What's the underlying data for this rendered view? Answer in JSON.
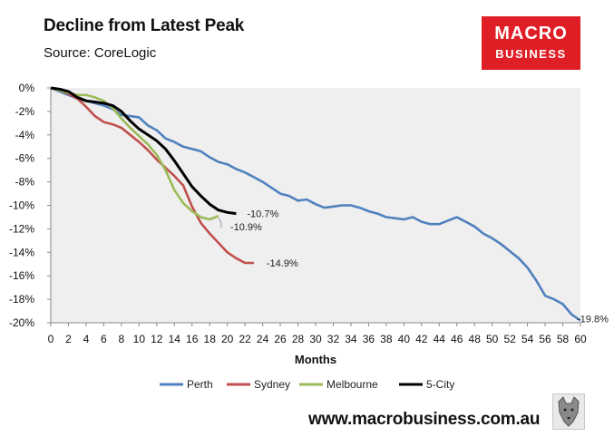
{
  "title": "Decline from Latest Peak",
  "source": "Source: CoreLogic",
  "logo": {
    "line1": "MACRO",
    "line2": "BUSINESS"
  },
  "footer_url": "www.macrobusiness.com.au",
  "colors": {
    "perth": "#4f81bd",
    "sydney": "#c0504d",
    "melbourne": "#9bbb59",
    "five_city": "#000000",
    "plot_bg": "#efefef",
    "logo_bg": "#e01e26"
  },
  "chart_data": {
    "type": "line",
    "title": "Decline from Latest Peak",
    "xlabel": "Months",
    "ylabel": "",
    "xlim": [
      0,
      60
    ],
    "ylim": [
      -20,
      0
    ],
    "xticks": [
      0,
      2,
      4,
      6,
      8,
      10,
      12,
      14,
      16,
      18,
      20,
      22,
      24,
      26,
      28,
      30,
      32,
      34,
      36,
      38,
      40,
      42,
      44,
      46,
      48,
      50,
      52,
      54,
      56,
      58,
      60
    ],
    "yticks": [
      0,
      -2,
      -4,
      -6,
      -8,
      -10,
      -12,
      -14,
      -16,
      -18,
      -20
    ],
    "ytick_labels": [
      "0%",
      "-2%",
      "-4%",
      "-6%",
      "-8%",
      "-10%",
      "-12%",
      "-14%",
      "-16%",
      "-18%",
      "-20%"
    ],
    "legend_position": "bottom",
    "series": [
      {
        "name": "Perth",
        "color": "#4f81bd",
        "x": [
          0,
          1,
          2,
          3,
          4,
          5,
          6,
          7,
          8,
          9,
          10,
          11,
          12,
          13,
          14,
          15,
          16,
          17,
          18,
          19,
          20,
          21,
          22,
          23,
          24,
          25,
          26,
          27,
          28,
          29,
          30,
          31,
          32,
          33,
          34,
          35,
          36,
          37,
          38,
          39,
          40,
          41,
          42,
          43,
          44,
          45,
          46,
          47,
          48,
          49,
          50,
          51,
          52,
          53,
          54,
          55,
          56,
          57,
          58,
          59,
          60
        ],
        "values": [
          0,
          -0.3,
          -0.6,
          -0.9,
          -1.1,
          -1.3,
          -1.5,
          -1.8,
          -2.3,
          -2.4,
          -2.5,
          -3.2,
          -3.6,
          -4.3,
          -4.6,
          -5.0,
          -5.2,
          -5.4,
          -5.9,
          -6.3,
          -6.5,
          -6.9,
          -7.2,
          -7.6,
          -8.0,
          -8.5,
          -9.0,
          -9.2,
          -9.6,
          -9.5,
          -9.9,
          -10.2,
          -10.1,
          -10.0,
          -10.0,
          -10.2,
          -10.5,
          -10.7,
          -11.0,
          -11.1,
          -11.2,
          -11.0,
          -11.4,
          -11.6,
          -11.6,
          -11.3,
          -11.0,
          -11.4,
          -11.8,
          -12.4,
          -12.8,
          -13.3,
          -13.9,
          -14.5,
          -15.3,
          -16.4,
          -17.7,
          -18.0,
          -18.4,
          -19.3,
          -19.8
        ]
      },
      {
        "name": "Sydney",
        "color": "#c0504d",
        "x": [
          0,
          1,
          2,
          3,
          4,
          5,
          6,
          7,
          8,
          9,
          10,
          11,
          12,
          13,
          14,
          15,
          16,
          17,
          18,
          19,
          20,
          21,
          22,
          23
        ],
        "values": [
          0,
          -0.2,
          -0.5,
          -0.9,
          -1.6,
          -2.4,
          -2.9,
          -3.1,
          -3.4,
          -4.0,
          -4.6,
          -5.3,
          -6.1,
          -6.8,
          -7.5,
          -8.3,
          -10.1,
          -11.5,
          -12.4,
          -13.2,
          -14.0,
          -14.5,
          -14.9,
          -14.9
        ]
      },
      {
        "name": "Melbourne",
        "color": "#9bbb59",
        "x": [
          0,
          1,
          2,
          3,
          4,
          5,
          6,
          7,
          8,
          9,
          10,
          11,
          12,
          13,
          14,
          15,
          16,
          17,
          18,
          19
        ],
        "values": [
          0,
          -0.2,
          -0.4,
          -0.6,
          -0.6,
          -0.8,
          -1.1,
          -1.7,
          -2.6,
          -3.4,
          -4.1,
          -4.8,
          -5.7,
          -7.0,
          -8.7,
          -9.8,
          -10.5,
          -11.0,
          -11.2,
          -10.9
        ]
      },
      {
        "name": "5-City",
        "color": "#000000",
        "x": [
          0,
          1,
          2,
          3,
          4,
          5,
          6,
          7,
          8,
          9,
          10,
          11,
          12,
          13,
          14,
          15,
          16,
          17,
          18,
          19,
          20,
          21
        ],
        "values": [
          0,
          -0.1,
          -0.3,
          -0.8,
          -1.1,
          -1.2,
          -1.3,
          -1.5,
          -2.0,
          -2.8,
          -3.5,
          -4.0,
          -4.5,
          -5.2,
          -6.2,
          -7.3,
          -8.4,
          -9.2,
          -9.9,
          -10.4,
          -10.6,
          -10.7
        ]
      }
    ],
    "annotations": [
      {
        "series": "5-City",
        "label": "-10.7%",
        "x": 21,
        "y": -10.7
      },
      {
        "series": "Melbourne",
        "label": "-10.9%",
        "x": 19,
        "y": -10.9
      },
      {
        "series": "Sydney",
        "label": "-14.9%",
        "x": 23,
        "y": -14.9
      },
      {
        "series": "Perth",
        "label": "-19.8%",
        "x": 60,
        "y": -19.8
      }
    ]
  }
}
